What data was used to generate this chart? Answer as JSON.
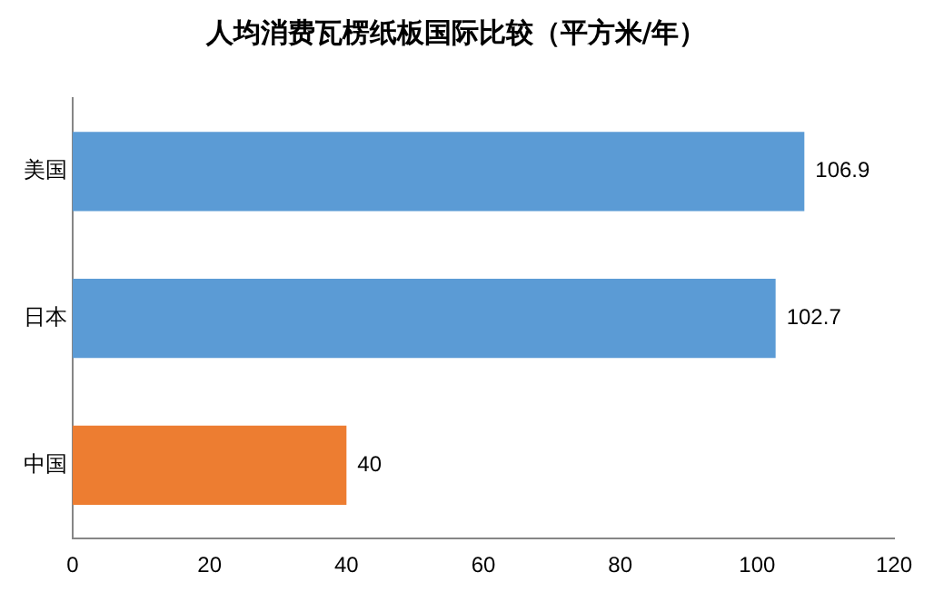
{
  "chart_data": {
    "type": "bar",
    "orientation": "horizontal",
    "title": "人均消费瓦楞纸板国际比较（平方米/年）",
    "categories": [
      "美国",
      "日本",
      "中国"
    ],
    "values": [
      106.9,
      102.7,
      40
    ],
    "colors": [
      "#5b9bd5",
      "#5b9bd5",
      "#ed7d31"
    ],
    "xlim": [
      0,
      120
    ],
    "xticks": [
      0,
      20,
      40,
      60,
      80,
      100,
      120
    ],
    "grid": false,
    "legend": false,
    "data_labels": true
  }
}
